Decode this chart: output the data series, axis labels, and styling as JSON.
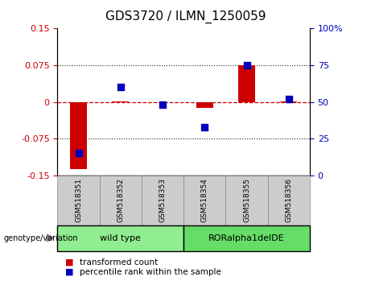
{
  "title": "GDS3720 / ILMN_1250059",
  "samples": [
    "GSM518351",
    "GSM518352",
    "GSM518353",
    "GSM518354",
    "GSM518355",
    "GSM518356"
  ],
  "transformed_count": [
    -0.137,
    0.001,
    0.0,
    -0.012,
    0.075,
    0.001
  ],
  "percentile_rank": [
    15,
    60,
    48,
    33,
    75,
    52
  ],
  "ylim_left": [
    -0.15,
    0.15
  ],
  "ylim_right": [
    0,
    100
  ],
  "yticks_left": [
    -0.15,
    -0.075,
    0,
    0.075,
    0.15
  ],
  "yticks_right": [
    0,
    25,
    50,
    75,
    100
  ],
  "hline_color_zero": "#cc0000",
  "hline_color_other": "#222222",
  "bar_color": "#cc0000",
  "scatter_color": "#0000bb",
  "left_tick_color": "#cc0000",
  "right_tick_color": "#0000bb",
  "wt_color": "#90ee90",
  "ror_color": "#66dd66",
  "genotype_label": "genotype/variation",
  "legend_red": "transformed count",
  "legend_blue": "percentile rank within the sample",
  "bg_color": "#ffffff",
  "bar_width": 0.4,
  "scatter_size": 40,
  "tick_fontsize": 8,
  "label_fontsize": 7,
  "title_fontsize": 11
}
